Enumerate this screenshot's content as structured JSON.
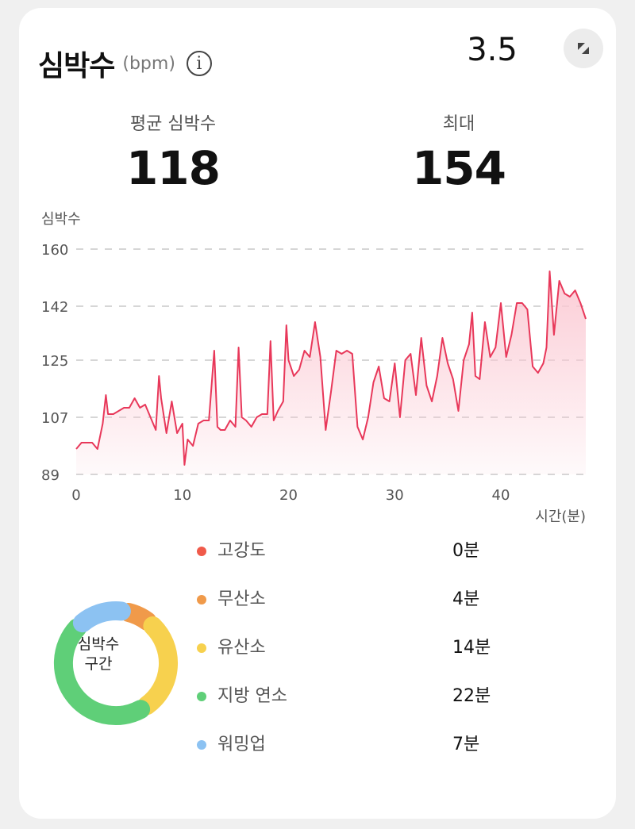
{
  "header": {
    "title": "심박수",
    "unit": "(bpm)",
    "info_icon": "info-icon",
    "version": "3.5",
    "expand_icon": "expand-icon"
  },
  "stats": {
    "avg_label": "평균 심박수",
    "avg_value": "118",
    "max_label": "최대",
    "max_value": "154"
  },
  "chart_data": {
    "type": "area",
    "ylabel": "심박수",
    "xlabel": "시간(분)",
    "y_ticks": [
      "160",
      "142",
      "125",
      "107",
      "89"
    ],
    "x_ticks": [
      "0",
      "10",
      "20",
      "30",
      "40"
    ],
    "xlim": [
      0,
      48
    ],
    "ylim": [
      89,
      160
    ],
    "grid": "dashed-horizontal",
    "line_color": "#e8385a",
    "fill_color": "#fbc9d3",
    "x": [
      0,
      0.5,
      1,
      1.5,
      2,
      2.5,
      2.8,
      3,
      3.5,
      4,
      4.5,
      5,
      5.5,
      6,
      6.5,
      7,
      7.5,
      7.8,
      8,
      8.5,
      9,
      9.5,
      10,
      10.2,
      10.5,
      11,
      11.5,
      12,
      12.5,
      13,
      13.3,
      13.6,
      14,
      14.5,
      15,
      15.3,
      15.6,
      16,
      16.5,
      17,
      17.5,
      18,
      18.3,
      18.6,
      19,
      19.5,
      19.8,
      20,
      20.5,
      21,
      21.5,
      22,
      22.5,
      23,
      23.5,
      24,
      24.5,
      25,
      25.5,
      26,
      26.5,
      27,
      27.5,
      28,
      28.5,
      29,
      29.5,
      30,
      30.5,
      31,
      31.5,
      32,
      32.5,
      33,
      33.5,
      34,
      34.5,
      35,
      35.5,
      36,
      36.5,
      37,
      37.3,
      37.6,
      38,
      38.5,
      39,
      39.5,
      40,
      40.5,
      41,
      41.5,
      42,
      42.5,
      43,
      43.5,
      44,
      44.3,
      44.6,
      45,
      45.5,
      46,
      46.5,
      47,
      47.5,
      48
    ],
    "y": [
      97,
      99,
      99,
      99,
      97,
      105,
      114,
      108,
      108,
      109,
      110,
      110,
      113,
      110,
      111,
      107,
      103,
      120,
      113,
      102,
      112,
      102,
      105,
      92,
      100,
      98,
      105,
      106,
      106,
      128,
      104,
      103,
      103,
      106,
      104,
      129,
      107,
      106,
      104,
      107,
      108,
      108,
      131,
      106,
      109,
      112,
      136,
      125,
      120,
      122,
      128,
      126,
      137,
      126,
      103,
      115,
      128,
      127,
      128,
      127,
      104,
      100,
      107,
      118,
      123,
      113,
      112,
      124,
      107,
      125,
      127,
      114,
      132,
      117,
      112,
      120,
      132,
      124,
      119,
      109,
      125,
      130,
      140,
      120,
      119,
      137,
      126,
      129,
      143,
      126,
      133,
      143,
      143,
      141,
      123,
      121,
      124,
      129,
      153,
      133,
      150,
      146,
      145,
      147,
      143,
      138
    ],
    "zones": [
      {
        "name": "고강도",
        "value": "0분",
        "minutes": 0,
        "color": "#f05a4a"
      },
      {
        "name": "무산소",
        "value": "4분",
        "minutes": 4,
        "color": "#f09a4a"
      },
      {
        "name": "유산소",
        "value": "14분",
        "minutes": 14,
        "color": "#f7d14e"
      },
      {
        "name": "지방 연소",
        "value": "22분",
        "minutes": 22,
        "color": "#5fcf78"
      },
      {
        "name": "워밍업",
        "value": "7분",
        "minutes": 7,
        "color": "#8cc2f2"
      }
    ],
    "donut_label_1": "심박수",
    "donut_label_2": "구간"
  }
}
